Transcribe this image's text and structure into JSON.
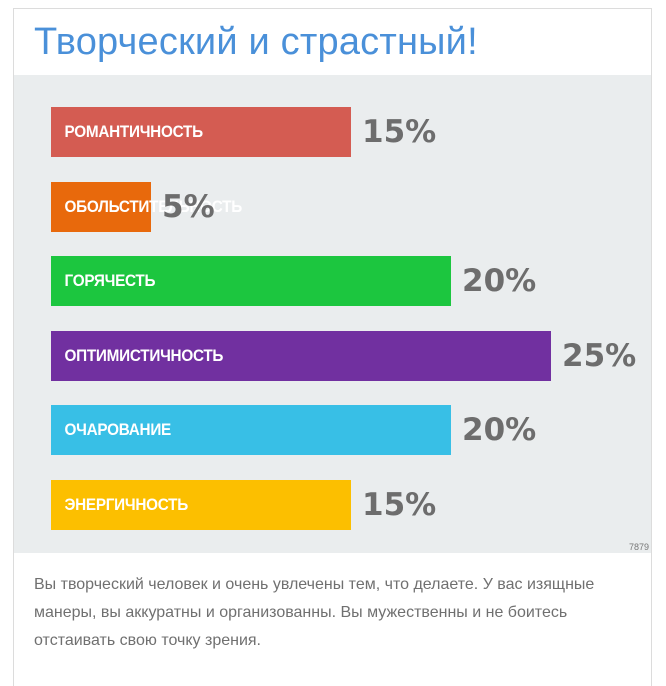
{
  "title": "Творческий и страстный!",
  "corner_id": "7879",
  "description": "Вы творческий человек и очень увлечены тем, что делаете. У вас изящные манеры, вы аккуратны и организованны. Вы мужественны и не боитесь отстаивать свою точку зрения.",
  "chart_data": {
    "type": "bar",
    "orientation": "horizontal",
    "categories": [
      "РОМАНТИЧНОСТЬ",
      "ОБОЛЬСТИТЕЛЬНОСТЬ",
      "ГОРЯЧЕСТЬ",
      "ОПТИМИСТИЧНОСТЬ",
      "ОЧАРОВАНИЕ",
      "ЭНЕРГИЧНОСТЬ"
    ],
    "values": [
      15,
      5,
      20,
      25,
      20,
      15
    ],
    "value_labels": [
      "15%",
      "5%",
      "20%",
      "25%",
      "20%",
      "15%"
    ],
    "colors": [
      "#d45c52",
      "#e8690c",
      "#1cc63f",
      "#7130a0",
      "#38bfe6",
      "#fcbf00"
    ],
    "xlim": [
      0,
      25
    ],
    "grid": false
  }
}
